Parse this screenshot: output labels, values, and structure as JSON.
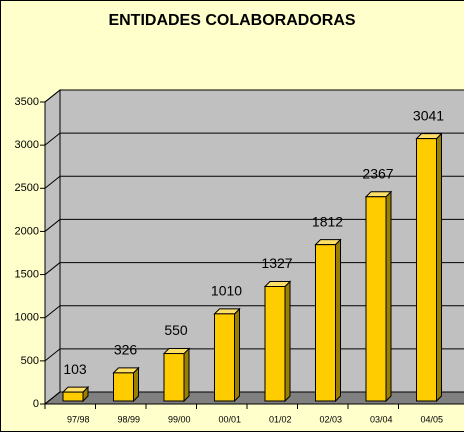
{
  "chart_data": {
    "type": "bar",
    "title": "ENTIDADES COLABORADORAS",
    "categories": [
      "97/98",
      "98/99",
      "99/00",
      "00/01",
      "01/02",
      "02/03",
      "03/04",
      "04/05"
    ],
    "values": [
      103,
      326,
      550,
      1010,
      1327,
      1812,
      2367,
      3041
    ],
    "color": "#ffcc00",
    "ylim": [
      0,
      3500
    ],
    "yticks": [
      0,
      500,
      1000,
      1500,
      2000,
      2500,
      3000,
      3500
    ],
    "grid": true
  }
}
